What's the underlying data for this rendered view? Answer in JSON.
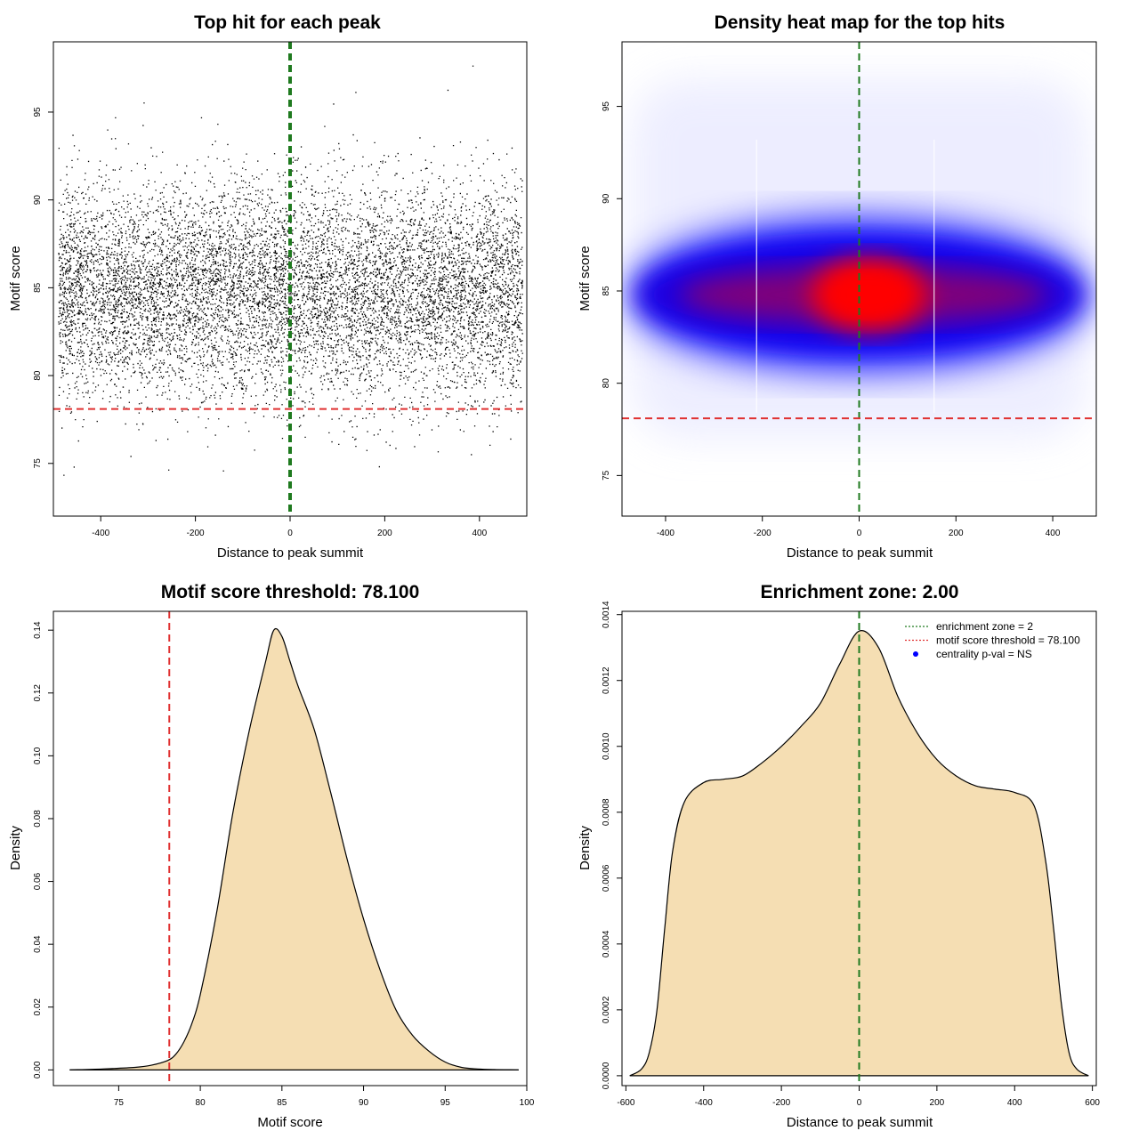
{
  "chart_data": [
    {
      "type": "scatter",
      "title": "Top hit for each peak",
      "xlabel": "Distance to peak summit",
      "ylabel": "Motif score",
      "xlim": [
        -500,
        500
      ],
      "ylim": [
        72,
        99
      ],
      "xticks": [
        -400,
        -200,
        0,
        200,
        400
      ],
      "yticks": [
        75,
        80,
        85,
        90,
        95
      ],
      "grid": false,
      "point_count_estimate": 10000,
      "point_distribution": {
        "x_range": [
          -490,
          490
        ],
        "y_center": 84.8,
        "y_sd": 3.0,
        "color": "#000000"
      },
      "reference_lines": [
        {
          "orientation": "vertical",
          "value": 0,
          "color": "#1f7a1f",
          "style": "dashed",
          "role": "enrichment-zone"
        },
        {
          "orientation": "horizontal",
          "value": 78.1,
          "color": "#e03030",
          "style": "dashed",
          "role": "score-threshold"
        }
      ]
    },
    {
      "type": "heatmap",
      "title": "Density heat map for the top hits",
      "xlabel": "Distance to peak summit",
      "ylabel": "Motif score",
      "xlim": [
        -490,
        490
      ],
      "ylim": [
        72.8,
        98.5
      ],
      "xticks": [
        -400,
        -200,
        0,
        200,
        400
      ],
      "yticks": [
        75,
        80,
        85,
        90,
        95
      ],
      "grid": false,
      "colors": {
        "low": "#ffffff",
        "mid": "#0000ff",
        "high": "#ff0000"
      },
      "density_peak": {
        "x": 20,
        "y": 84.8
      },
      "white_verticals": [
        -212,
        155
      ],
      "reference_lines": [
        {
          "orientation": "vertical",
          "value": 0,
          "color": "#1f7a1f",
          "style": "dashed",
          "role": "enrichment-zone"
        },
        {
          "orientation": "horizontal",
          "value": 78.1,
          "color": "#e03030",
          "style": "dashed",
          "role": "score-threshold"
        }
      ]
    },
    {
      "type": "area",
      "title": "Motif score threshold: 78.100",
      "xlabel": "Motif score",
      "ylabel": "Density",
      "xlim": [
        71,
        100
      ],
      "ylim": [
        -0.005,
        0.146
      ],
      "xticks": [
        75,
        80,
        85,
        90,
        95,
        100
      ],
      "yticks": [
        0.0,
        0.02,
        0.04,
        0.06,
        0.08,
        0.1,
        0.12,
        0.14
      ],
      "ytick_labels": [
        "0.00",
        "0.02",
        "0.04",
        "0.06",
        "0.08",
        "0.10",
        "0.12",
        "0.14"
      ],
      "grid": false,
      "fill_color": "#f5deb3",
      "x": [
        72,
        74,
        76,
        77,
        78,
        78.5,
        79,
        79.5,
        80,
        81,
        82,
        83,
        84,
        84.5,
        85,
        85.5,
        86,
        87,
        88,
        89,
        90,
        91,
        92,
        93,
        94,
        95,
        96,
        97,
        98,
        99.5
      ],
      "y": [
        0.0,
        0.0003,
        0.0008,
        0.0015,
        0.003,
        0.005,
        0.009,
        0.015,
        0.024,
        0.05,
        0.082,
        0.108,
        0.13,
        0.14,
        0.138,
        0.13,
        0.122,
        0.108,
        0.088,
        0.067,
        0.048,
        0.032,
        0.019,
        0.011,
        0.006,
        0.0025,
        0.0008,
        0.0003,
        0.0001,
        0.0
      ],
      "reference_lines": [
        {
          "orientation": "vertical",
          "value": 78.1,
          "color": "#e03030",
          "style": "dashed",
          "role": "score-threshold"
        }
      ]
    },
    {
      "type": "area",
      "title": "Enrichment zone: 2.00",
      "xlabel": "Distance to peak summit",
      "ylabel": "Density",
      "xlim": [
        -610,
        610
      ],
      "ylim": [
        -3e-05,
        0.00141
      ],
      "xticks": [
        -600,
        -400,
        -200,
        0,
        200,
        400,
        600
      ],
      "yticks": [
        0.0,
        0.0002,
        0.0004,
        0.0006,
        0.0008,
        0.001,
        0.0012,
        0.0014
      ],
      "ytick_labels": [
        "0.0000",
        "0.0002",
        "0.0004",
        "0.0006",
        "0.0008",
        "0.0010",
        "0.0012",
        "0.0014"
      ],
      "grid": false,
      "fill_color": "#f5deb3",
      "x": [
        -590,
        -560,
        -540,
        -520,
        -500,
        -480,
        -450,
        -400,
        -350,
        -300,
        -250,
        -200,
        -150,
        -100,
        -50,
        0,
        50,
        100,
        150,
        200,
        250,
        300,
        350,
        400,
        450,
        480,
        500,
        520,
        540,
        560,
        590
      ],
      "y": [
        0.0,
        2e-05,
        7e-05,
        0.0002,
        0.00045,
        0.00068,
        0.00083,
        0.00089,
        0.0009,
        0.00091,
        0.00095,
        0.001,
        0.00106,
        0.00113,
        0.00125,
        0.00135,
        0.0013,
        0.00115,
        0.00104,
        0.00096,
        0.00091,
        0.00088,
        0.00087,
        0.00086,
        0.00082,
        0.00065,
        0.00045,
        0.00022,
        7e-05,
        2e-05,
        0.0
      ],
      "reference_lines": [
        {
          "orientation": "vertical",
          "value": 0,
          "color": "#1f7a1f",
          "style": "dashed",
          "role": "enrichment-zone"
        }
      ],
      "legend": {
        "placement": "top-right",
        "entries": [
          {
            "label": "enrichment zone = 2",
            "color": "#1f7a1f",
            "symbol": "dotted-line"
          },
          {
            "label": "motif score threshold = 78.100",
            "color": "#e03030",
            "symbol": "dotted-line"
          },
          {
            "label": "centrality p-val = NS",
            "color": "#0000ff",
            "symbol": "point"
          }
        ]
      }
    }
  ]
}
